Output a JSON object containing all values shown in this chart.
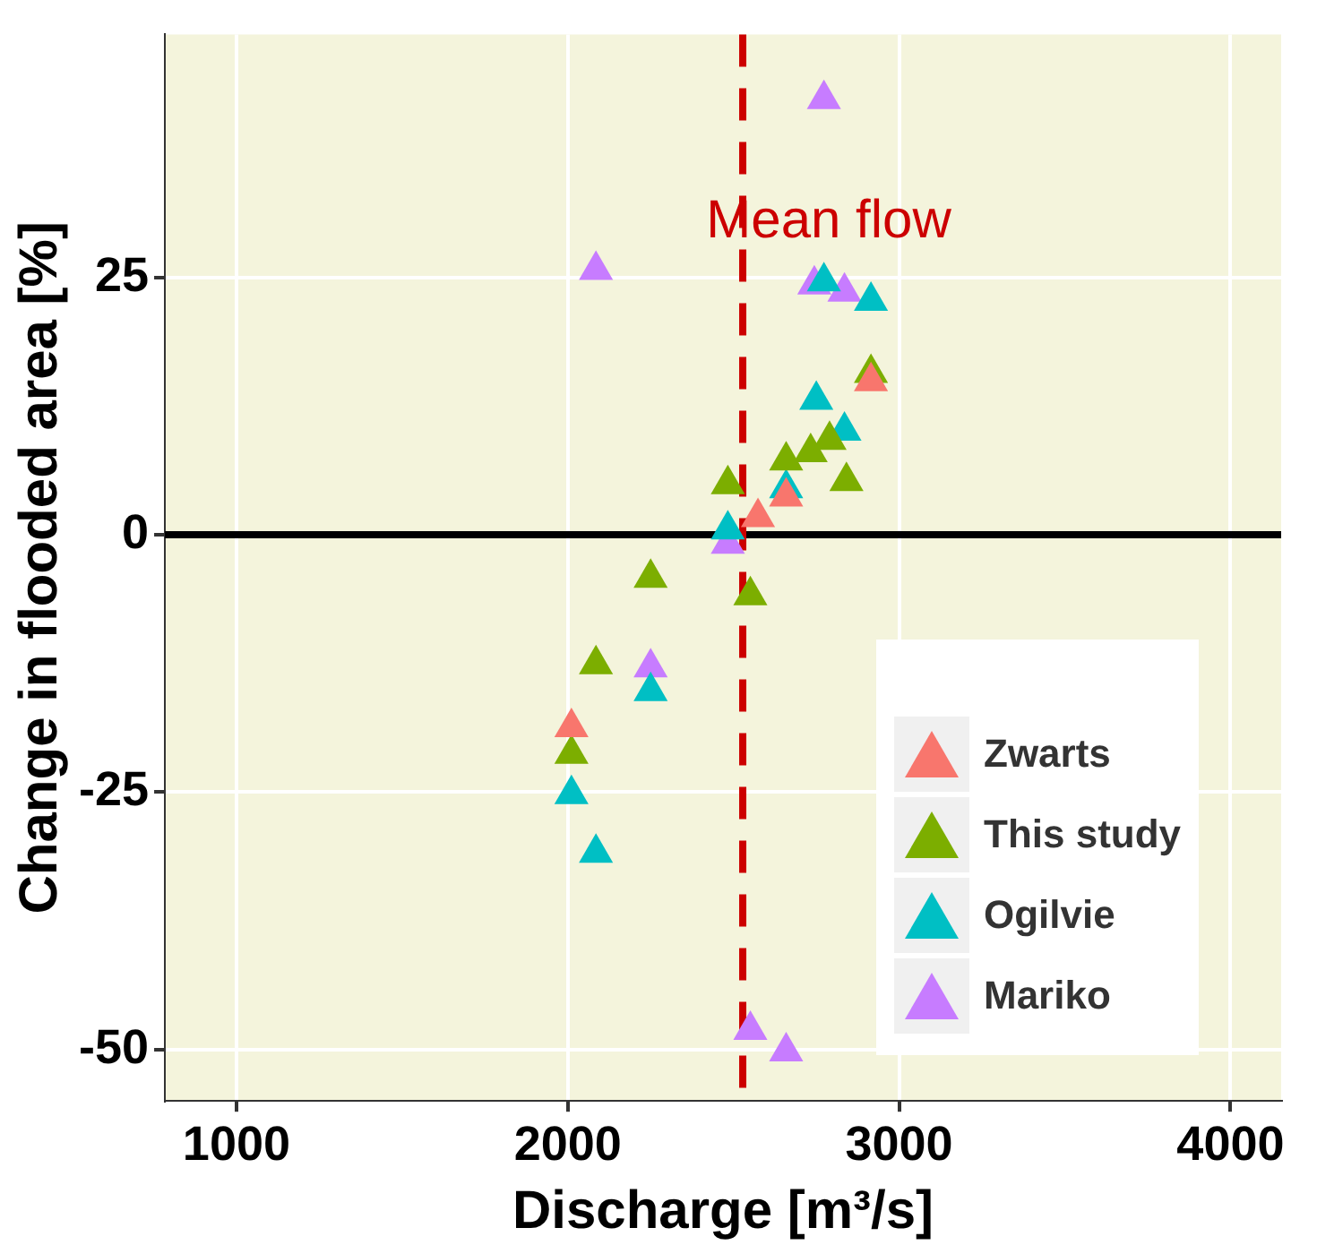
{
  "chart_data": {
    "type": "scatter",
    "xlabel": "Discharge [m³/s]",
    "ylabel": "Change in flooded area [%]",
    "xlim": [
      784,
      4153
    ],
    "ylim": [
      -55,
      48.6
    ],
    "xticks": [
      1000,
      2000,
      3000,
      4000
    ],
    "yticks": [
      -50,
      -25,
      0,
      25
    ],
    "grid": true,
    "legend": "bottom right",
    "marker": "triangle",
    "ref_lines": [
      {
        "axis": "y",
        "value": 0,
        "color": "#000000",
        "line_style": "solid"
      },
      {
        "axis": "x",
        "value": 2528,
        "label": "Mean flow",
        "color": "#cc0000",
        "line_style": "dashed"
      }
    ],
    "series": [
      {
        "name": "Zwarts",
        "color": "#f8766d",
        "x": [
          2574,
          2659,
          2915,
          2011
        ],
        "values": [
          1.7,
          3.7,
          14.9,
          -18.7
        ]
      },
      {
        "name": "This study",
        "color": "#7cae00",
        "x": [
          2915,
          2733,
          2790,
          2659,
          2841,
          2483,
          2250,
          2551,
          2085,
          2011
        ],
        "values": [
          15.7,
          8.0,
          9.2,
          7.2,
          5.2,
          4.9,
          -4.2,
          -5.9,
          -12.6,
          -21.3
        ]
      },
      {
        "name": "Ogilvie",
        "color": "#00bfc4",
        "x": [
          2773,
          2915,
          2750,
          2835,
          2659,
          2483,
          2250,
          2011,
          2085
        ],
        "values": [
          24.6,
          22.7,
          13.1,
          10.1,
          4.5,
          0.5,
          -15.2,
          -25.2,
          -30.9
        ]
      },
      {
        "name": "Mariko",
        "color": "#c77cff",
        "x": [
          2773,
          2085,
          2744,
          2835,
          2483,
          2551,
          2659,
          2250
        ],
        "values": [
          42.3,
          25.7,
          24.3,
          23.6,
          -0.9,
          -48.1,
          -50.2,
          -12.9
        ]
      }
    ]
  }
}
